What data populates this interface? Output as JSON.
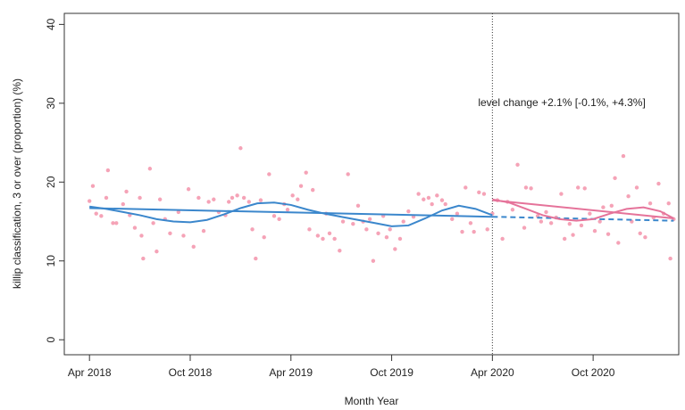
{
  "chart_data": {
    "type": "line",
    "xlabel": "Month Year",
    "ylabel": "killip classification, 3 or over (proportion) (%)",
    "annotation": "level change +2.1% [-0.1%, +4.3%]",
    "intervention": 24,
    "xlim": [
      -1.5,
      35.1
    ],
    "ylim": [
      -1.9,
      41.4
    ],
    "xticks": [
      {
        "value": 0,
        "label": "Apr 2018"
      },
      {
        "value": 6,
        "label": "Oct 2018"
      },
      {
        "value": 12,
        "label": "Apr 2019"
      },
      {
        "value": 18,
        "label": "Oct 2019"
      },
      {
        "value": 24,
        "label": "Apr 2020"
      },
      {
        "value": 30,
        "label": "Oct 2020"
      }
    ],
    "yticks": [
      0,
      10,
      20,
      30,
      40
    ],
    "series": [
      {
        "type": "scatter",
        "color": "#f5a3b7",
        "x": [
          0,
          0.2,
          0.4,
          0.7,
          1.0,
          1.1,
          1.4,
          1.6,
          2.0,
          2.2,
          2.4,
          2.7,
          3.0,
          3.1,
          3.2,
          3.6,
          3.8,
          4.0,
          4.2,
          4.5,
          4.8,
          5.3,
          5.6,
          5.9,
          6.2,
          6.5,
          6.8,
          7.1,
          7.4,
          7.7,
          8.1,
          8.3,
          8.5,
          8.8,
          9.0,
          9.2,
          9.5,
          9.7,
          9.9,
          10.2,
          10.4,
          10.7,
          11.0,
          11.3,
          11.6,
          11.8,
          12.1,
          12.4,
          12.6,
          12.9,
          13.1,
          13.3,
          13.6,
          13.9,
          14.1,
          14.3,
          14.6,
          14.9,
          15.1,
          15.4,
          15.7,
          16.0,
          16.3,
          16.5,
          16.7,
          16.9,
          17.2,
          17.5,
          17.7,
          17.9,
          18.2,
          18.5,
          18.7,
          19.0,
          19.3,
          19.6,
          19.9,
          20.2,
          20.4,
          20.7,
          21.0,
          21.2,
          21.6,
          21.9,
          22.2,
          22.4,
          22.7,
          22.9,
          23.2,
          23.5,
          23.7,
          24.0,
          24.3,
          24.6,
          24.9,
          25.2,
          25.5,
          25.9,
          26.0,
          26.3,
          26.7,
          26.9,
          27.2,
          27.5,
          27.8,
          28.1,
          28.3,
          28.6,
          28.8,
          29.1,
          29.3,
          29.5,
          29.8,
          30.1,
          30.4,
          30.6,
          30.9,
          31.1,
          31.3,
          31.5,
          31.8,
          32.1,
          32.3,
          32.6,
          32.8,
          33.1,
          33.4,
          33.6,
          33.9,
          34.2,
          34.5,
          34.6,
          34.8
        ],
        "values": [
          17.6,
          19.5,
          16,
          15.7,
          18,
          21.5,
          14.8,
          14.8,
          17.2,
          18.8,
          15.8,
          14.2,
          18,
          13.2,
          10.3,
          21.7,
          14.8,
          11.2,
          17.8,
          15.3,
          13.5,
          16.2,
          13.2,
          19.1,
          11.8,
          18,
          13.8,
          17.5,
          17.8,
          16.2,
          15.8,
          17.5,
          18,
          18.3,
          24.3,
          18,
          17.5,
          14,
          10.3,
          17.7,
          13,
          21,
          15.7,
          15.3,
          17.2,
          16.5,
          18.3,
          17.8,
          19.5,
          21.2,
          14,
          19,
          13.2,
          12.8,
          16,
          13.5,
          12.8,
          11.3,
          15,
          21,
          14.7,
          17,
          15,
          14,
          15.3,
          10,
          13.5,
          15.7,
          13,
          14,
          11.5,
          12.8,
          15,
          16.3,
          15.6,
          18.5,
          17.8,
          18,
          17.2,
          18.3,
          17.7,
          17.2,
          15.3,
          16,
          13.7,
          19.3,
          14.8,
          13.7,
          18.7,
          18.5,
          14,
          16,
          17.7,
          12.8,
          17.5,
          16.5,
          22.2,
          14.2,
          19.3,
          19.2,
          15.7,
          15,
          16.2,
          14.8,
          15.5,
          18.5,
          12.8,
          14.7,
          13.3,
          19.3,
          14.5,
          19.2,
          16,
          13.8,
          15,
          16.8,
          13.4,
          17,
          20.5,
          12.3,
          23.3,
          18.2,
          15,
          19.3,
          13.5,
          13,
          17.3,
          15.5,
          19.8,
          16,
          17.3,
          10.3,
          15.3
        ]
      },
      {
        "type": "line",
        "color": "#3b87cc",
        "x": [
          0,
          24
        ],
        "values": [
          16.7,
          15.6
        ]
      },
      {
        "type": "line",
        "color": "#3b87cc",
        "x": [
          0,
          1,
          2,
          3,
          4,
          5,
          6,
          7,
          8,
          9,
          10,
          11,
          12,
          13,
          14,
          15,
          16,
          17,
          18,
          19,
          20,
          21,
          22,
          23,
          24
        ],
        "values": [
          16.9,
          16.6,
          16.2,
          15.8,
          15.3,
          15.0,
          14.9,
          15.2,
          15.9,
          16.7,
          17.3,
          17.4,
          17.1,
          16.5,
          16.0,
          15.6,
          15.2,
          14.8,
          14.4,
          14.5,
          15.4,
          16.4,
          17.0,
          16.6,
          15.8
        ]
      },
      {
        "type": "line",
        "color": "#3b87cc",
        "dash": true,
        "x": [
          24,
          34.8
        ],
        "values": [
          15.6,
          15.1
        ]
      },
      {
        "type": "line",
        "color": "#e5739a",
        "x": [
          24,
          34.8
        ],
        "values": [
          17.7,
          15.4
        ]
      },
      {
        "type": "line",
        "color": "#e5739a",
        "x": [
          24,
          25,
          26,
          27,
          28,
          29,
          30,
          31,
          32,
          33,
          34,
          34.8
        ],
        "values": [
          17.8,
          17.4,
          16.6,
          15.8,
          15.3,
          15.1,
          15.3,
          16.0,
          16.6,
          16.8,
          16.3,
          15.4
        ]
      }
    ]
  }
}
